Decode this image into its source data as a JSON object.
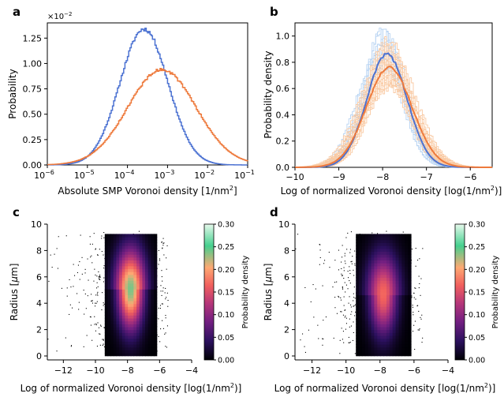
{
  "colors": {
    "blue": "#4C72D2",
    "orange": "#EE7A3C",
    "blue_light": "#B7D3F2",
    "orange_light": "#F9C9A2",
    "colormap": [
      "#000004",
      "#2C115F",
      "#721F81",
      "#B73779",
      "#F1605D",
      "#FEA973",
      "#45D08E",
      "#E6F9EC"
    ]
  },
  "panels": {
    "a": {
      "letter": "a",
      "xlabel": "Absolute SMP Voronoi density [1/nm",
      "xlabel_sup": "2",
      "xlabel_end": "]",
      "ylabel": "Probability",
      "offset_text": "×10",
      "offset_sup": "−2"
    },
    "b": {
      "letter": "b",
      "xlabel": "Log of normalized Voronoi density [log(1/nm",
      "xlabel_sup": "2",
      "xlabel_end": ")]",
      "ylabel": "Probability density"
    },
    "c": {
      "letter": "c",
      "xlabel": "Log of normalized Voronoi density [log(1/nm",
      "xlabel_sup": "2",
      "xlabel_end": ")]",
      "ylabel": "Radius [",
      "ylabel_mu": "μ",
      "ylabel_end": "m]",
      "cbar_label": "Probability density"
    },
    "d": {
      "letter": "d",
      "xlabel": "Log of normalized Voronoi density [log(1/nm",
      "xlabel_sup": "2",
      "xlabel_end": ")]",
      "ylabel": "Radius [",
      "ylabel_mu": "μ",
      "ylabel_end": "m]",
      "cbar_label": "Probability density"
    }
  },
  "chart_data": [
    {
      "panel": "a",
      "type": "line",
      "x_scale": "log",
      "xlabel": "Absolute SMP Voronoi density [1/nm²]",
      "ylabel": "Probability",
      "xlim": [
        1e-06,
        0.1
      ],
      "ylim": [
        0,
        0.014
      ],
      "y_offset_text": "×10⁻²",
      "x_ticks": [
        1e-06,
        1e-05,
        0.0001,
        0.001,
        0.01,
        0.1
      ],
      "x_tick_labels": [
        "10",
        "10",
        "10",
        "10",
        "10",
        "10"
      ],
      "x_tick_exponents": [
        "−6",
        "−5",
        "−4",
        "−3",
        "−2",
        "−1"
      ],
      "y_ticks": [
        0,
        0.0025,
        0.005,
        0.0075,
        0.01,
        0.0125
      ],
      "y_tick_labels": [
        "0.00",
        "0.25",
        "0.50",
        "0.75",
        "1.00",
        "1.25"
      ],
      "series": [
        {
          "color": "blue",
          "peak_x": 0.00025,
          "peak_y": 0.0134,
          "log_sigma": 0.6
        },
        {
          "color": "orange",
          "peak_x": 0.0007,
          "peak_y": 0.0094,
          "log_sigma": 0.85
        }
      ],
      "grid": false,
      "legend": "none"
    },
    {
      "panel": "b",
      "type": "line",
      "xlabel": "Log of normalized Voronoi density [log(1/nm²)]",
      "ylabel": "Probability density",
      "xlim": [
        -10,
        -5.5
      ],
      "ylim": [
        0,
        1.1
      ],
      "x_ticks": [
        -10,
        -9,
        -8,
        -7,
        -6
      ],
      "x_tick_labels": [
        "−10",
        "−9",
        "−8",
        "−7",
        "−6"
      ],
      "y_ticks": [
        0,
        0.2,
        0.4,
        0.6,
        0.8,
        1.0
      ],
      "y_tick_labels": [
        "0.0",
        "0.2",
        "0.4",
        "0.6",
        "0.8",
        "1.0"
      ],
      "series": [
        {
          "color": "blue",
          "peak_x": -7.9,
          "peak_y": 0.86,
          "sigma": 0.46
        },
        {
          "color": "orange",
          "peak_x": -7.85,
          "peak_y": 0.76,
          "sigma": 0.52
        }
      ],
      "background_curves": {
        "blue_light_count": 12,
        "orange_light_count": 20
      },
      "grid": false,
      "legend": "none"
    },
    {
      "panel": "c",
      "type": "heatmap",
      "xlabel": "Log of normalized Voronoi density [log(1/nm²)]",
      "ylabel": "Radius [μm]",
      "xlim": [
        -13,
        -4
      ],
      "ylim": [
        -0.3,
        10
      ],
      "x_ticks": [
        -12,
        -10,
        -8,
        -6,
        -4
      ],
      "x_tick_labels": [
        "−12",
        "−10",
        "−8",
        "−6",
        "−4"
      ],
      "y_ticks": [
        0,
        2,
        4,
        6,
        8,
        10
      ],
      "y_tick_labels": [
        "0",
        "2",
        "4",
        "6",
        "8",
        "10"
      ],
      "peak_x": -7.9,
      "peak_y": 5.0,
      "peak_density": 0.24,
      "colorbar": {
        "min": 0,
        "max": 0.3,
        "ticks": [
          "0.00",
          "0.05",
          "0.10",
          "0.15",
          "0.20",
          "0.25",
          "0.30"
        ],
        "label": "Probability density"
      }
    },
    {
      "panel": "d",
      "type": "heatmap",
      "xlabel": "Log of normalized Voronoi density [log(1/nm²)]",
      "ylabel": "Radius [μm]",
      "xlim": [
        -13,
        -4
      ],
      "ylim": [
        -0.3,
        10
      ],
      "x_ticks": [
        -12,
        -10,
        -8,
        -6,
        -4
      ],
      "x_tick_labels": [
        "−12",
        "−10",
        "−8",
        "−6",
        "−4"
      ],
      "y_ticks": [
        0,
        2,
        4,
        6,
        8,
        10
      ],
      "y_tick_labels": [
        "0",
        "2",
        "4",
        "6",
        "8",
        "10"
      ],
      "peak_x": -7.9,
      "peak_y": 4.6,
      "peak_density": 0.17,
      "colorbar": {
        "min": 0,
        "max": 0.3,
        "ticks": [
          "0.00",
          "0.05",
          "0.10",
          "0.15",
          "0.20",
          "0.25",
          "0.30"
        ],
        "label": "Probability density"
      }
    }
  ]
}
